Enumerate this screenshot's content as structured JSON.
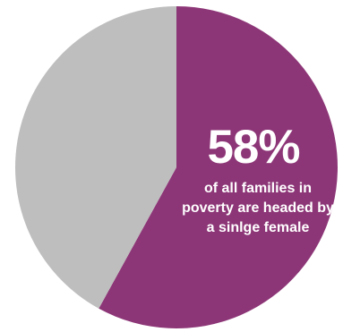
{
  "chart_data": {
    "type": "pie",
    "slices": [
      {
        "value": 58,
        "color": "#8d3677"
      },
      {
        "value": 42,
        "color": "#bebebe"
      }
    ],
    "annotation": {
      "value_text": "58%",
      "caption_lines": [
        "of all families in",
        "poverty are headed by",
        "a sinlge female"
      ]
    }
  }
}
